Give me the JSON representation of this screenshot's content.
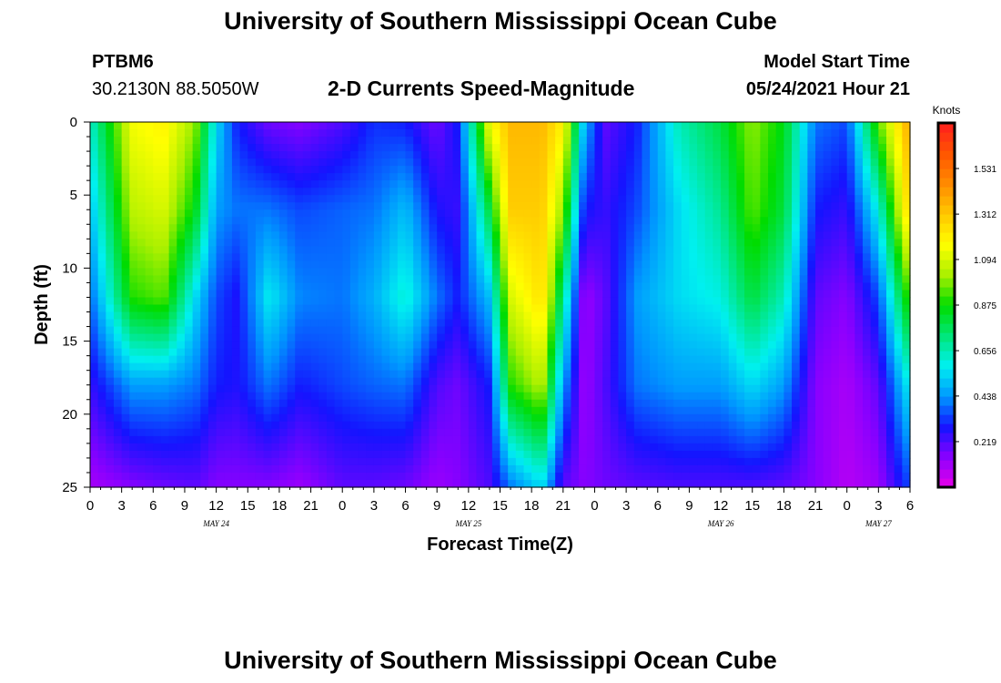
{
  "page": {
    "title_top": "University of Southern Mississippi Ocean Cube",
    "title_bottom": "University of Southern Mississippi Ocean Cube",
    "station_id": "PTBM6",
    "station_coords": "30.2130N  88.5050W",
    "product_title": "2-D Currents Speed-Magnitude",
    "model_start_label": "Model Start Time",
    "model_start_value": "05/24/2021 Hour 21"
  },
  "chart_data": {
    "type": "heatmap",
    "title": "2-D Currents Speed-Magnitude",
    "xlabel": "Forecast Time(Z)",
    "ylabel": "Depth (ft)",
    "xlim": [
      0,
      78
    ],
    "ylim": [
      0,
      25
    ],
    "y_inverted": true,
    "x_ticks": [
      "0",
      "3",
      "6",
      "9",
      "12",
      "15",
      "18",
      "21",
      "0",
      "3",
      "6",
      "9",
      "12",
      "15",
      "18",
      "21",
      "0",
      "3",
      "6",
      "9",
      "12",
      "15",
      "18",
      "21",
      "0",
      "3",
      "6"
    ],
    "y_ticks": [
      "0",
      "5",
      "10",
      "15",
      "20",
      "25"
    ],
    "date_labels": [
      {
        "label": "MAY 24",
        "hour": 12
      },
      {
        "label": "MAY 25",
        "hour": 36
      },
      {
        "label": "MAY 26",
        "hour": 60
      },
      {
        "label": "MAY 27",
        "hour": 75
      }
    ],
    "colorbar": {
      "unit": "Knots",
      "ticks": [
        "0.219",
        "0.438",
        "0.656",
        "0.875",
        "1.094",
        "1.312",
        "1.531"
      ],
      "min": 0.0,
      "max": 1.75,
      "colors": [
        "#e800e8",
        "#8a00ff",
        "#1414ff",
        "#0096ff",
        "#00f0f0",
        "#00e678",
        "#00dc00",
        "#aaf000",
        "#ffff00",
        "#ffc800",
        "#ff8c00",
        "#ff5500",
        "#ff1e1e"
      ]
    },
    "grid": false,
    "depth_profiles": [
      {
        "hour": 0,
        "z": [
          0,
          6,
          12,
          18,
          25
        ],
        "speed": [
          0.62,
          0.5,
          0.38,
          0.25,
          0.1
        ]
      },
      {
        "hour": 4,
        "z": [
          0,
          6,
          12,
          18,
          25
        ],
        "speed": [
          1.15,
          1.05,
          0.9,
          0.45,
          0.15
        ]
      },
      {
        "hour": 7,
        "z": [
          0,
          6,
          12,
          18,
          25
        ],
        "speed": [
          1.2,
          1.1,
          0.95,
          0.45,
          0.18
        ]
      },
      {
        "hour": 10,
        "z": [
          0,
          6,
          12,
          18,
          25
        ],
        "speed": [
          1.0,
          0.85,
          0.55,
          0.4,
          0.2
        ]
      },
      {
        "hour": 12,
        "z": [
          0,
          6,
          12,
          18,
          25
        ],
        "speed": [
          0.55,
          0.45,
          0.35,
          0.3,
          0.15
        ]
      },
      {
        "hour": 14,
        "z": [
          0,
          6,
          12,
          18,
          25
        ],
        "speed": [
          0.3,
          0.4,
          0.28,
          0.28,
          0.15
        ]
      },
      {
        "hour": 17,
        "z": [
          0,
          6,
          12,
          18,
          25
        ],
        "speed": [
          0.18,
          0.4,
          0.58,
          0.4,
          0.15
        ]
      },
      {
        "hour": 20,
        "z": [
          0,
          6,
          12,
          18,
          25
        ],
        "speed": [
          0.15,
          0.35,
          0.42,
          0.3,
          0.12
        ]
      },
      {
        "hour": 24,
        "z": [
          0,
          6,
          12,
          18,
          25
        ],
        "speed": [
          0.22,
          0.38,
          0.4,
          0.35,
          0.2
        ]
      },
      {
        "hour": 27,
        "z": [
          0,
          6,
          12,
          18,
          25
        ],
        "speed": [
          0.32,
          0.4,
          0.48,
          0.38,
          0.2
        ]
      },
      {
        "hour": 30,
        "z": [
          0,
          6,
          12,
          18,
          25
        ],
        "speed": [
          0.3,
          0.5,
          0.62,
          0.4,
          0.18
        ]
      },
      {
        "hour": 33,
        "z": [
          0,
          6,
          12,
          18,
          25
        ],
        "speed": [
          0.18,
          0.28,
          0.4,
          0.22,
          0.12
        ]
      },
      {
        "hour": 35,
        "z": [
          0,
          6,
          12,
          18,
          25
        ],
        "speed": [
          0.3,
          0.25,
          0.3,
          0.18,
          0.15
        ]
      },
      {
        "hour": 38,
        "z": [
          0,
          6,
          12,
          18,
          25
        ],
        "speed": [
          1.15,
          0.8,
          0.5,
          0.3,
          0.22
        ]
      },
      {
        "hour": 40,
        "z": [
          0,
          6,
          12,
          18,
          25
        ],
        "speed": [
          1.35,
          1.3,
          1.1,
          0.9,
          0.4
        ]
      },
      {
        "hour": 43,
        "z": [
          0,
          6,
          12,
          18,
          25
        ],
        "speed": [
          1.35,
          1.3,
          1.25,
          1.05,
          0.55
        ]
      },
      {
        "hour": 45,
        "z": [
          0,
          6,
          12,
          18,
          25
        ],
        "speed": [
          1.2,
          1.0,
          0.7,
          0.45,
          0.2
        ]
      },
      {
        "hour": 47,
        "z": [
          0,
          6,
          12,
          18,
          25
        ],
        "speed": [
          0.5,
          0.3,
          0.12,
          0.12,
          0.15
        ]
      },
      {
        "hour": 49,
        "z": [
          0,
          6,
          12,
          18,
          25
        ],
        "speed": [
          0.2,
          0.25,
          0.2,
          0.22,
          0.18
        ]
      },
      {
        "hour": 52,
        "z": [
          0,
          6,
          12,
          18,
          25
        ],
        "speed": [
          0.3,
          0.35,
          0.45,
          0.4,
          0.2
        ]
      },
      {
        "hour": 56,
        "z": [
          0,
          6,
          12,
          18,
          25
        ],
        "speed": [
          0.65,
          0.55,
          0.55,
          0.45,
          0.22
        ]
      },
      {
        "hour": 60,
        "z": [
          0,
          6,
          12,
          18,
          25
        ],
        "speed": [
          0.8,
          0.7,
          0.6,
          0.45,
          0.22
        ]
      },
      {
        "hour": 63,
        "z": [
          0,
          6,
          12,
          18,
          25
        ],
        "speed": [
          1.0,
          0.95,
          0.8,
          0.55,
          0.22
        ]
      },
      {
        "hour": 66,
        "z": [
          0,
          6,
          12,
          18,
          25
        ],
        "speed": [
          0.85,
          0.8,
          0.65,
          0.45,
          0.2
        ]
      },
      {
        "hour": 69,
        "z": [
          0,
          6,
          12,
          18,
          25
        ],
        "speed": [
          0.4,
          0.3,
          0.2,
          0.15,
          0.15
        ]
      },
      {
        "hour": 72,
        "z": [
          0,
          6,
          12,
          18,
          25
        ],
        "speed": [
          0.35,
          0.25,
          0.15,
          0.1,
          0.08
        ]
      },
      {
        "hour": 75,
        "z": [
          0,
          6,
          12,
          18,
          25
        ],
        "speed": [
          0.95,
          0.6,
          0.35,
          0.2,
          0.12
        ]
      },
      {
        "hour": 78,
        "z": [
          0,
          6,
          12,
          18,
          25
        ],
        "speed": [
          1.4,
          1.3,
          0.95,
          0.6,
          0.35
        ]
      }
    ]
  }
}
